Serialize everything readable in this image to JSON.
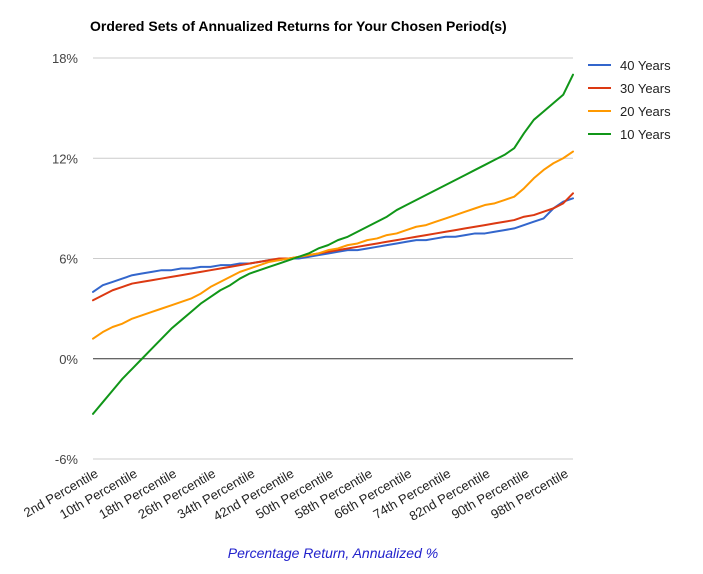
{
  "chart_data": {
    "type": "line",
    "title": "Ordered Sets of Annualized Returns for Your Chosen Period(s)",
    "xlabel": "Percentage Return, Annualized %",
    "ylabel": "",
    "ylim": [
      -6,
      18
    ],
    "yticks": [
      -6,
      0,
      6,
      12,
      18
    ],
    "ytick_labels": [
      "-6%",
      "0%",
      "6%",
      "12%",
      "18%"
    ],
    "x": [
      2,
      4,
      6,
      8,
      10,
      12,
      14,
      16,
      18,
      20,
      22,
      24,
      26,
      28,
      30,
      32,
      34,
      36,
      38,
      40,
      42,
      44,
      46,
      48,
      50,
      52,
      54,
      56,
      58,
      60,
      62,
      64,
      66,
      68,
      70,
      72,
      74,
      76,
      78,
      80,
      82,
      84,
      86,
      88,
      90,
      92,
      94,
      96,
      98,
      100
    ],
    "x_tick_labels": [
      "2nd Percentile",
      "10th Percentile",
      "18th Percentile",
      "26th Percentile",
      "34th Percentile",
      "42nd Percentile",
      "50th Percentile",
      "58th Percentile",
      "66th Percentile",
      "74th Percentile",
      "82nd Percentile",
      "90th Percentile",
      "98th Percentile"
    ],
    "x_tick_values": [
      2,
      10,
      18,
      26,
      34,
      42,
      50,
      58,
      66,
      74,
      82,
      90,
      98
    ],
    "grid": true,
    "legend_position": "right",
    "series": [
      {
        "name": "40 Years",
        "color": "#3366cc",
        "values": [
          4.0,
          4.4,
          4.6,
          4.8,
          5.0,
          5.1,
          5.2,
          5.3,
          5.3,
          5.4,
          5.4,
          5.5,
          5.5,
          5.6,
          5.6,
          5.7,
          5.7,
          5.8,
          5.9,
          5.9,
          6.0,
          6.0,
          6.1,
          6.2,
          6.3,
          6.4,
          6.5,
          6.5,
          6.6,
          6.7,
          6.8,
          6.9,
          7.0,
          7.1,
          7.1,
          7.2,
          7.3,
          7.3,
          7.4,
          7.5,
          7.5,
          7.6,
          7.7,
          7.8,
          8.0,
          8.2,
          8.4,
          9.0,
          9.4,
          9.6
        ]
      },
      {
        "name": "30 Years",
        "color": "#dc3912",
        "values": [
          3.5,
          3.8,
          4.1,
          4.3,
          4.5,
          4.6,
          4.7,
          4.8,
          4.9,
          5.0,
          5.1,
          5.2,
          5.3,
          5.4,
          5.5,
          5.6,
          5.7,
          5.8,
          5.9,
          6.0,
          6.0,
          6.1,
          6.2,
          6.3,
          6.4,
          6.5,
          6.6,
          6.7,
          6.8,
          6.9,
          7.0,
          7.1,
          7.2,
          7.3,
          7.4,
          7.5,
          7.6,
          7.7,
          7.8,
          7.9,
          8.0,
          8.1,
          8.2,
          8.3,
          8.5,
          8.6,
          8.8,
          9.0,
          9.3,
          9.9
        ]
      },
      {
        "name": "20 Years",
        "color": "#ff9900",
        "values": [
          1.2,
          1.6,
          1.9,
          2.1,
          2.4,
          2.6,
          2.8,
          3.0,
          3.2,
          3.4,
          3.6,
          3.9,
          4.3,
          4.6,
          4.9,
          5.2,
          5.4,
          5.6,
          5.8,
          5.9,
          6.0,
          6.1,
          6.2,
          6.3,
          6.5,
          6.6,
          6.8,
          6.9,
          7.1,
          7.2,
          7.4,
          7.5,
          7.7,
          7.9,
          8.0,
          8.2,
          8.4,
          8.6,
          8.8,
          9.0,
          9.2,
          9.3,
          9.5,
          9.7,
          10.2,
          10.8,
          11.3,
          11.7,
          12.0,
          12.4
        ]
      },
      {
        "name": "10 Years",
        "color": "#109618",
        "values": [
          -3.3,
          -2.6,
          -1.9,
          -1.2,
          -0.6,
          0.0,
          0.6,
          1.2,
          1.8,
          2.3,
          2.8,
          3.3,
          3.7,
          4.1,
          4.4,
          4.8,
          5.1,
          5.3,
          5.5,
          5.7,
          5.9,
          6.1,
          6.3,
          6.6,
          6.8,
          7.1,
          7.3,
          7.6,
          7.9,
          8.2,
          8.5,
          8.9,
          9.2,
          9.5,
          9.8,
          10.1,
          10.4,
          10.7,
          11.0,
          11.3,
          11.6,
          11.9,
          12.2,
          12.6,
          13.5,
          14.3,
          14.8,
          15.3,
          15.8,
          17.0
        ]
      }
    ]
  }
}
